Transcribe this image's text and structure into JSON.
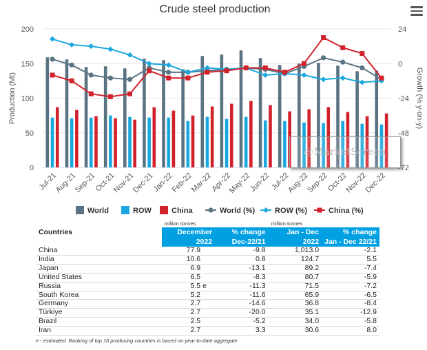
{
  "chart_data": {
    "type": "bar+line",
    "title": "Crude steel production",
    "ylabel_left": "Production (Mt)",
    "ylabel_right": "Growth (% y-on-y)",
    "ylim_left": [
      0,
      200
    ],
    "yticks_left": [
      "0",
      "50",
      "100",
      "150",
      "200"
    ],
    "ylim_right": [
      -72,
      24
    ],
    "yticks_right": [
      "-72",
      "-48",
      "-24",
      "0",
      "24"
    ],
    "categories": [
      "Jul-21",
      "Aug-21",
      "Sep-21",
      "Oct-21",
      "Nov-21",
      "Dec-21",
      "Jan-22",
      "Feb-22",
      "Mar-22",
      "Apr-22",
      "May-22",
      "Jun-22",
      "Jul-22",
      "Aug-22",
      "Sep-22",
      "Oct-22",
      "Nov-22",
      "Dec-22"
    ],
    "bar_series": [
      {
        "name": "World",
        "color": "#5a7383",
        "values": [
          159,
          156,
          145,
          146,
          143,
          157,
          155,
          142,
          161,
          163,
          169,
          158,
          148,
          150,
          151,
          147,
          139,
          140
        ]
      },
      {
        "name": "ROW",
        "color": "#1aa7df",
        "values": [
          72,
          71,
          72,
          75,
          73,
          72,
          72,
          67,
          73,
          70,
          73,
          68,
          67,
          65,
          64,
          67,
          63,
          62
        ]
      },
      {
        "name": "China",
        "color": "#d1212b",
        "values": [
          87,
          83,
          74,
          71,
          69,
          87,
          82,
          75,
          88,
          92,
          96,
          90,
          81,
          84,
          87,
          80,
          74,
          78
        ]
      }
    ],
    "line_series": [
      {
        "name": "World (%)",
        "color": "#5a7383",
        "values": [
          3,
          -1,
          -8,
          -10,
          -11,
          -3,
          -6,
          -6,
          -5,
          -4,
          -3,
          -4,
          -7,
          -2,
          4,
          1,
          -3,
          -11
        ]
      },
      {
        "name": "ROW (%)",
        "color": "#1aa7df",
        "values": [
          17,
          13,
          12,
          10,
          6,
          0,
          -1,
          -6,
          -3,
          -4,
          -3,
          -8,
          -7,
          -8,
          -11,
          -10,
          -13,
          -12
        ]
      },
      {
        "name": "China (%)",
        "color": "#d1212b",
        "values": [
          -8,
          -12,
          -21,
          -23,
          -21,
          -5,
          -10,
          -10,
          -6,
          -5,
          -3,
          -3,
          -6,
          0,
          18,
          11,
          7,
          -10
        ]
      }
    ],
    "legend": [
      "World",
      "ROW",
      "China",
      "World (%)",
      "ROW (%)",
      "China (%)"
    ]
  },
  "watermark": "@MarketScreen",
  "table": {
    "unit_left": "million tonnes",
    "unit_right": "million tonnes",
    "col_countries": "Countries",
    "col1_line1": "December",
    "col1_line2": "2022",
    "col2_line1": "% change",
    "col2_line2": "Dec-22/21",
    "col3_line1": "Jan - Dec",
    "col3_line2": "2022",
    "col4_line1": "% change",
    "col4_line2": "Jan - Dec 22/21",
    "rows": [
      {
        "country": "China",
        "dec": "77.9",
        "est": "",
        "pct": "-9.8",
        "ytd": "1,013.0",
        "ytd_pct": "-2.1"
      },
      {
        "country": "India",
        "dec": "10.6",
        "est": "",
        "pct": "0.8",
        "ytd": "124.7",
        "ytd_pct": "5.5"
      },
      {
        "country": "Japan",
        "dec": "6.9",
        "est": "",
        "pct": "-13.1",
        "ytd": "89.2",
        "ytd_pct": "-7.4"
      },
      {
        "country": "United States",
        "dec": "6.5",
        "est": "",
        "pct": "-8.3",
        "ytd": "80.7",
        "ytd_pct": "-5.9"
      },
      {
        "country": "Russia",
        "dec": "5.5",
        "est": "e",
        "pct": "-11.3",
        "ytd": "71.5",
        "ytd_pct": "-7.2"
      },
      {
        "country": "South Korea",
        "dec": "5.2",
        "est": "",
        "pct": "-11.6",
        "ytd": "65.9",
        "ytd_pct": "-6.5"
      },
      {
        "country": "Germany",
        "dec": "2.7",
        "est": "",
        "pct": "-14.6",
        "ytd": "36.8",
        "ytd_pct": "-8.4"
      },
      {
        "country": "Türkiye",
        "dec": "2.7",
        "est": "",
        "pct": "-20.0",
        "ytd": "35.1",
        "ytd_pct": "-12.9"
      },
      {
        "country": "Brazil",
        "dec": "2.5",
        "est": "",
        "pct": "-5.2",
        "ytd": "34.0",
        "ytd_pct": "-5.8"
      },
      {
        "country": "Iran",
        "dec": "2.7",
        "est": "",
        "pct": "3.3",
        "ytd": "30.6",
        "ytd_pct": "8.0"
      }
    ]
  },
  "footnote": "e - estimated. Ranking of top 10 producing countries is based on year-to-date aggregate"
}
